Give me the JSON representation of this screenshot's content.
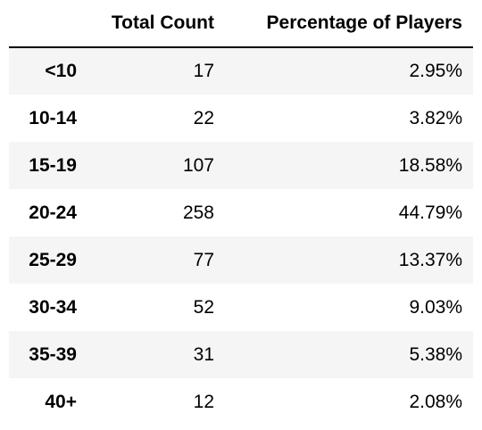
{
  "table": {
    "columns": [
      "",
      "Total Count",
      "Percentage of Players"
    ],
    "rows": [
      {
        "label": "<10",
        "count": "17",
        "percent": "2.95%"
      },
      {
        "label": "10-14",
        "count": "22",
        "percent": "3.82%"
      },
      {
        "label": "15-19",
        "count": "107",
        "percent": "18.58%"
      },
      {
        "label": "20-24",
        "count": "258",
        "percent": "44.79%"
      },
      {
        "label": "25-29",
        "count": "77",
        "percent": "13.37%"
      },
      {
        "label": "30-34",
        "count": "52",
        "percent": "9.03%"
      },
      {
        "label": "35-39",
        "count": "31",
        "percent": "5.38%"
      },
      {
        "label": "40+",
        "count": "12",
        "percent": "2.08%"
      }
    ]
  },
  "colors": {
    "stripe": "#f5f5f5",
    "background": "#ffffff",
    "text": "#000000"
  }
}
